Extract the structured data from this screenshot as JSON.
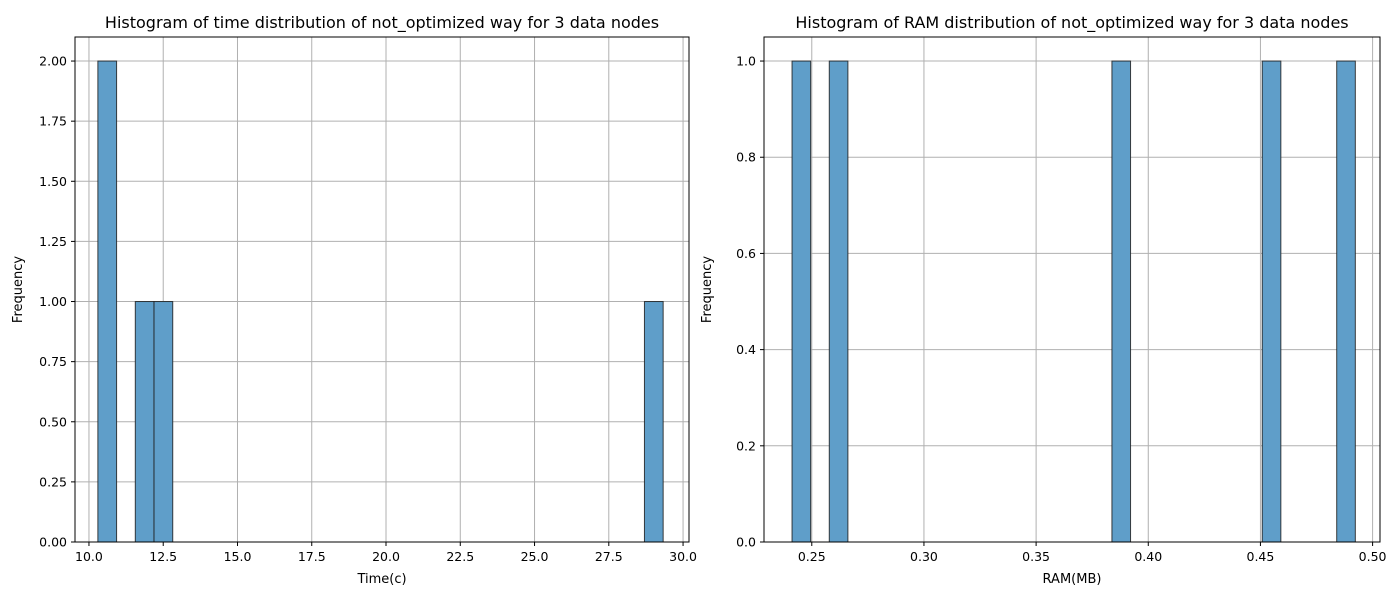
{
  "chart_data": [
    {
      "type": "bar",
      "subtype": "histogram",
      "title": "Histogram of time distribution of not_optimized way for 3 data nodes",
      "xlabel": "Time(c)",
      "ylabel": "Frequency",
      "xlim": [
        9.53,
        30.2
      ],
      "ylim": [
        0,
        2.1
      ],
      "xticks": [
        10.0,
        12.5,
        15.0,
        17.5,
        20.0,
        22.5,
        25.0,
        27.5,
        30.0
      ],
      "xtick_labels": [
        "10.0",
        "12.5",
        "15.0",
        "17.5",
        "20.0",
        "22.5",
        "25.0",
        "27.5",
        "30.0"
      ],
      "yticks": [
        0.0,
        0.25,
        0.5,
        0.75,
        1.0,
        1.25,
        1.5,
        1.75,
        2.0
      ],
      "ytick_labels": [
        "0.00",
        "0.25",
        "0.50",
        "0.75",
        "1.00",
        "1.25",
        "1.50",
        "1.75",
        "2.00"
      ],
      "grid": true,
      "bar_color": "#5f9ec9",
      "edge_color": "#1f1f1f",
      "bins": [
        {
          "start": 10.3,
          "end": 10.93,
          "count": 2
        },
        {
          "start": 11.56,
          "end": 12.19,
          "count": 1
        },
        {
          "start": 12.19,
          "end": 12.82,
          "count": 1
        },
        {
          "start": 28.7,
          "end": 29.33,
          "count": 1
        }
      ]
    },
    {
      "type": "bar",
      "subtype": "histogram",
      "title": "Histogram of RAM distribution of not_optimized way for 3 data nodes",
      "xlabel": "RAM(MB)",
      "ylabel": "Frequency",
      "xlim": [
        0.2287,
        0.5033
      ],
      "ylim": [
        0,
        1.05
      ],
      "xticks": [
        0.25,
        0.3,
        0.35,
        0.4,
        0.45,
        0.5
      ],
      "xtick_labels": [
        "0.25",
        "0.30",
        "0.35",
        "0.40",
        "0.45",
        "0.50"
      ],
      "yticks": [
        0.0,
        0.2,
        0.4,
        0.6,
        0.8,
        1.0
      ],
      "ytick_labels": [
        "0.0",
        "0.2",
        "0.4",
        "0.6",
        "0.8",
        "1.0"
      ],
      "grid": true,
      "bar_color": "#5f9ec9",
      "edge_color": "#1f1f1f",
      "bins": [
        {
          "start": 0.2412,
          "end": 0.2495,
          "count": 1
        },
        {
          "start": 0.2578,
          "end": 0.2661,
          "count": 1
        },
        {
          "start": 0.3838,
          "end": 0.3921,
          "count": 1
        },
        {
          "start": 0.4508,
          "end": 0.4591,
          "count": 1
        },
        {
          "start": 0.484,
          "end": 0.4923,
          "count": 1
        }
      ]
    }
  ]
}
